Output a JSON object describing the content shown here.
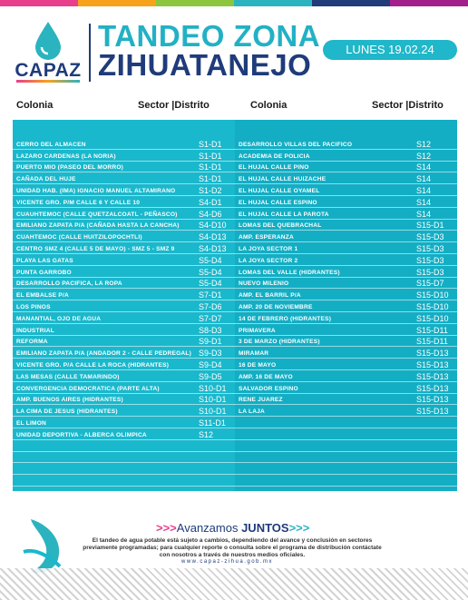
{
  "colors": {
    "accent_cyan": "#1ab8cc",
    "accent_navy": "#1f3b7a",
    "topbar": [
      "#e83e8c",
      "#f7a21b",
      "#8cc63f",
      "#2bb3c0",
      "#1f3b7a",
      "#a3208c"
    ]
  },
  "header": {
    "logo_text": "CAPAZ",
    "title_line1": "TANDEO ZONA",
    "title_line2": "ZIHUATANEJO",
    "date": "LUNES 19.02.24"
  },
  "columns": {
    "colonia": "Colonia",
    "sector": "Sector |Distrito"
  },
  "left_rows": [
    {
      "name": "CERRO DEL ALMACEN",
      "sector": "S1-D1"
    },
    {
      "name": "LAZARO CARDENAS (LA NORIA)",
      "sector": "S1-D1"
    },
    {
      "name": "PUERTO MIO (PASEO DEL MORRO)",
      "sector": "S1-D1"
    },
    {
      "name": "CAÑADA DEL HUJE",
      "sector": "S1-D1"
    },
    {
      "name": "UNIDAD HAB. (IMA) IGNACIO MANUEL ALTAMIRANO",
      "sector": "S1-D2"
    },
    {
      "name": "VICENTE GRO. P/M CALLE 6 Y CALLE 10",
      "sector": "S4-D1"
    },
    {
      "name": "CUAUHTEMOC (CALLE QUETZALCOATL - PEÑASCO)",
      "sector": "S4-D6"
    },
    {
      "name": "EMILIANO ZAPATA P/A (CAÑADA HASTA LA CANCHA)",
      "sector": "S4-D10"
    },
    {
      "name": "CUAHTEMOC (CALLE HUITZILOPOCHTLI)",
      "sector": "S4-D13"
    },
    {
      "name": "CENTRO SMZ 4 (CALLE 5 DE MAYO) - SMZ 5 - SMZ 9",
      "sector": "S4-D13"
    },
    {
      "name": "PLAYA LAS GATAS",
      "sector": "S5-D4"
    },
    {
      "name": "PUNTA GARROBO",
      "sector": "S5-D4"
    },
    {
      "name": "DESARROLLO PACIFICA, LA ROPA",
      "sector": "S5-D4"
    },
    {
      "name": "EL EMBALSE P/A",
      "sector": "S7-D1"
    },
    {
      "name": "LOS PINOS",
      "sector": "S7-D6"
    },
    {
      "name": "MANANTIAL, OJO DE AGUA",
      "sector": "S7-D7"
    },
    {
      "name": "INDUSTRIAL",
      "sector": "S8-D3"
    },
    {
      "name": "REFORMA",
      "sector": "S9-D1"
    },
    {
      "name": "EMILIANO ZAPATA P/A (ANDADOR 2 - CALLE PEDREGAL)",
      "sector": "S9-D3"
    },
    {
      "name": "VICENTE GRO. P/A CALLE LA ROCA (HIDRANTES)",
      "sector": "S9-D4"
    },
    {
      "name": "LAS MESAS (CALLE TAMARINDO)",
      "sector": "S9-D5"
    },
    {
      "name": "CONVERGENCIA DEMOCRATICA (PARTE ALTA)",
      "sector": "S10-D1"
    },
    {
      "name": "AMP. BUENOS AIRES (HIDRANTES)",
      "sector": "S10-D1"
    },
    {
      "name": "LA CIMA DE JESUS (HIDRANTES)",
      "sector": "S10-D1"
    },
    {
      "name": "EL LIMON",
      "sector": "S11-D1"
    },
    {
      "name": "UNIDAD DEPORTIVA - ALBERCA OLIMPICA",
      "sector": "S12"
    },
    {
      "name": "",
      "sector": ""
    },
    {
      "name": "",
      "sector": ""
    },
    {
      "name": "",
      "sector": ""
    },
    {
      "name": "",
      "sector": ""
    }
  ],
  "right_rows": [
    {
      "name": "DESARROLLO VILLAS DEL PACIFICO",
      "sector": "S12"
    },
    {
      "name": "ACADEMIA DE POLICIA",
      "sector": "S12"
    },
    {
      "name": "EL HUJAL CALLE PINO",
      "sector": "S14"
    },
    {
      "name": "EL HUJAL CALLE HUIZACHE",
      "sector": "S14"
    },
    {
      "name": "EL HUJAL CALLE OYAMEL",
      "sector": "S14"
    },
    {
      "name": "EL HUJAL CALLE ESPINO",
      "sector": "S14"
    },
    {
      "name": "EL HUJAL CALLE LA PAROTA",
      "sector": "S14"
    },
    {
      "name": "LOMAS DEL QUEBRACHAL",
      "sector": "S15-D1"
    },
    {
      "name": "AMP. ESPERANZA",
      "sector": "S15-D3"
    },
    {
      "name": "LA JOYA SECTOR 1",
      "sector": "S15-D3"
    },
    {
      "name": "LA JOYA SECTOR 2",
      "sector": "S15-D3"
    },
    {
      "name": "LOMAS DEL VALLE (HIDRANTES)",
      "sector": "S15-D3"
    },
    {
      "name": "NUEVO MILENIO",
      "sector": "S15-D7"
    },
    {
      "name": "AMP. EL BARRIL P/A",
      "sector": "S15-D10"
    },
    {
      "name": "AMP. 20 DE NOVIEMBRE",
      "sector": "S15-D10"
    },
    {
      "name": "14 DE FEBRERO (HIDRANTES)",
      "sector": "S15-D10"
    },
    {
      "name": "PRIMAVERA",
      "sector": "S15-D11"
    },
    {
      "name": "3 DE MARZO (HIDRANTES)",
      "sector": "S15-D11"
    },
    {
      "name": "MIRAMAR",
      "sector": "S15-D13"
    },
    {
      "name": "16 DE MAYO",
      "sector": "S15-D13"
    },
    {
      "name": "AMP. 16 DE MAYO",
      "sector": "S15-D13"
    },
    {
      "name": "SALVADOR ESPINO",
      "sector": "S15-D13"
    },
    {
      "name": "RENE JUAREZ",
      "sector": "S15-D13"
    },
    {
      "name": "LA LAJA",
      "sector": "S15-D13"
    },
    {
      "name": "",
      "sector": ""
    },
    {
      "name": "",
      "sector": ""
    },
    {
      "name": "",
      "sector": ""
    },
    {
      "name": "",
      "sector": ""
    },
    {
      "name": "",
      "sector": ""
    },
    {
      "name": "",
      "sector": ""
    }
  ],
  "footer": {
    "slogan_prefix": ">>>",
    "slogan_light": "Avanzamos ",
    "slogan_bold": "JUNTOS",
    "slogan_suffix": ">>>",
    "disclaimer": "El tandeo de agua potable está sujeto a cambios, dependiendo del avance y conclusión en sectores previamente programadas; para cualquier reporte o consulta sobre el programa de distribución contáctate con nosotros a través de nuestros medios oficiales.",
    "website": "www.capaz-zihua.gob.mx"
  }
}
